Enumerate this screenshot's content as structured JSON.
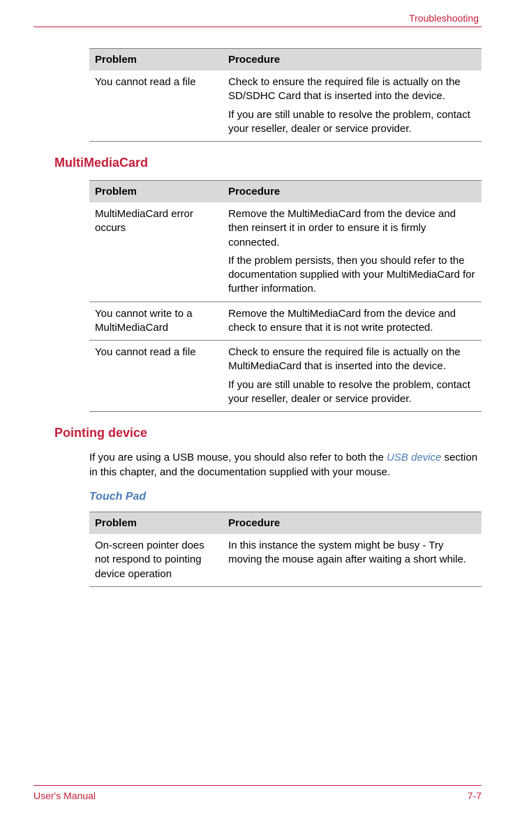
{
  "header": {
    "section_title": "Troubleshooting"
  },
  "tables": {
    "sd_card": {
      "headers": {
        "problem": "Problem",
        "procedure": "Procedure"
      },
      "rows": [
        {
          "problem": "You cannot read a file",
          "procedure_p1": "Check to ensure the required file is actually on the SD/SDHC Card that is inserted into the device.",
          "procedure_p2": "If you are still unable to resolve the problem, contact your reseller, dealer or service provider."
        }
      ]
    },
    "multimedia": {
      "headers": {
        "problem": "Problem",
        "procedure": "Procedure"
      },
      "rows": [
        {
          "problem": "MultiMediaCard error occurs",
          "procedure_p1": "Remove the MultiMediaCard from the device and then reinsert it in order to ensure it is firmly connected.",
          "procedure_p2": "If the problem persists, then you should refer to the documentation supplied with your MultiMediaCard for further information."
        },
        {
          "problem": "You cannot write to a MultiMediaCard",
          "procedure_p1": "Remove the MultiMediaCard from the device and check to ensure that it is not write protected."
        },
        {
          "problem": "You cannot read a file",
          "procedure_p1": "Check to ensure the required file is actually on the MultiMediaCard that is inserted into the device.",
          "procedure_p2": "If you are still unable to resolve the problem, contact your reseller, dealer or service provider."
        }
      ]
    },
    "touchpad": {
      "headers": {
        "problem": "Problem",
        "procedure": "Procedure"
      },
      "rows": [
        {
          "problem": "On-screen pointer does not respond to pointing device operation",
          "procedure_p1": "In this instance the system might be busy - Try moving the mouse again after waiting a short while."
        }
      ]
    }
  },
  "sections": {
    "multimedia_heading": "MultiMediaCard",
    "pointing_heading": "Pointing device",
    "pointing_body_pre": "If you are using a USB mouse, you should also refer to both the ",
    "pointing_body_link": "USB device",
    "pointing_body_post": " section in this chapter, and the documentation supplied with your mouse.",
    "touchpad_heading": "Touch Pad"
  },
  "footer": {
    "left": "User's Manual",
    "right": "7-7"
  },
  "colors": {
    "brand_red": "#c41e3a",
    "link_blue": "#4a7bb5",
    "header_gray": "#d9d9d9",
    "border_gray": "#808080"
  }
}
